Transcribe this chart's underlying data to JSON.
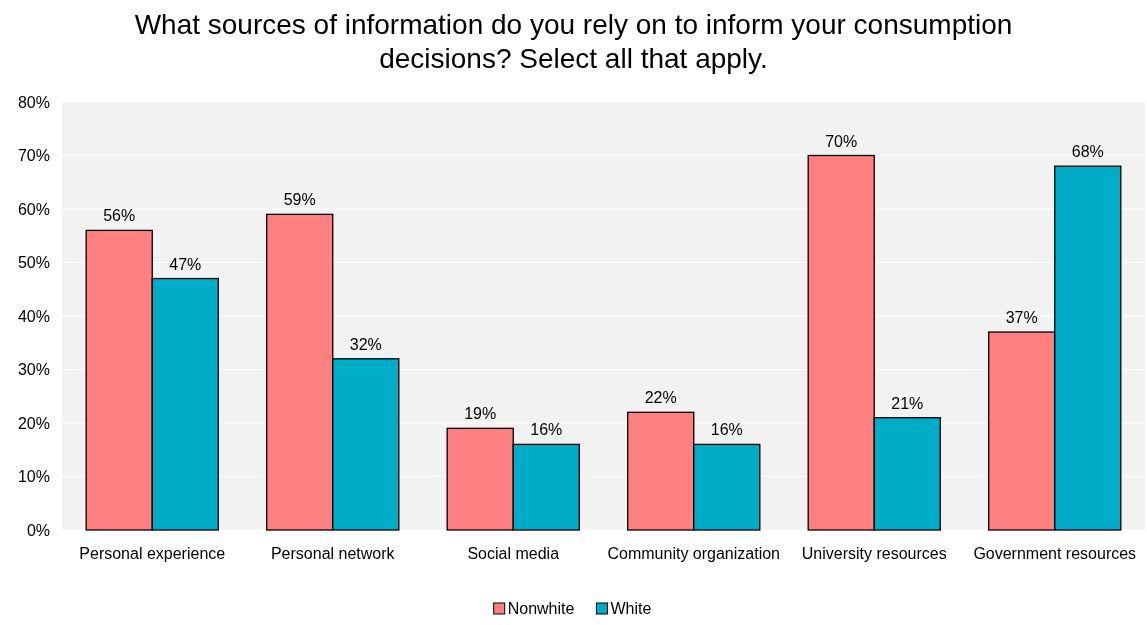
{
  "chart_data": {
    "type": "bar",
    "title": "What sources of information do you rely on to inform your consumption decisions? Select all that apply.",
    "categories": [
      "Personal experience",
      "Personal network",
      "Social media",
      "Community organization",
      "University resources",
      "Government resources"
    ],
    "series": [
      {
        "name": "Nonwhite",
        "color": "#ff8080",
        "values": [
          56,
          59,
          19,
          22,
          70,
          37
        ],
        "value_labels": [
          "56%",
          "59%",
          "19%",
          "22%",
          "70%",
          "37%"
        ]
      },
      {
        "name": "White",
        "color": "#00acc8",
        "values": [
          47,
          32,
          16,
          16,
          21,
          68
        ],
        "value_labels": [
          "47%",
          "32%",
          "16%",
          "16%",
          "21%",
          "68%"
        ]
      }
    ],
    "ylim": [
      0,
      80
    ],
    "yticks": [
      {
        "value": 0,
        "label": "0%"
      },
      {
        "value": 10,
        "label": "10%"
      },
      {
        "value": 20,
        "label": "20%"
      },
      {
        "value": 30,
        "label": "30%"
      },
      {
        "value": 40,
        "label": "40%"
      },
      {
        "value": 50,
        "label": "50%"
      },
      {
        "value": 60,
        "label": "60%"
      },
      {
        "value": 70,
        "label": "70%"
      },
      {
        "value": 80,
        "label": "80%"
      }
    ],
    "grid": "y",
    "legend": "bottom"
  }
}
